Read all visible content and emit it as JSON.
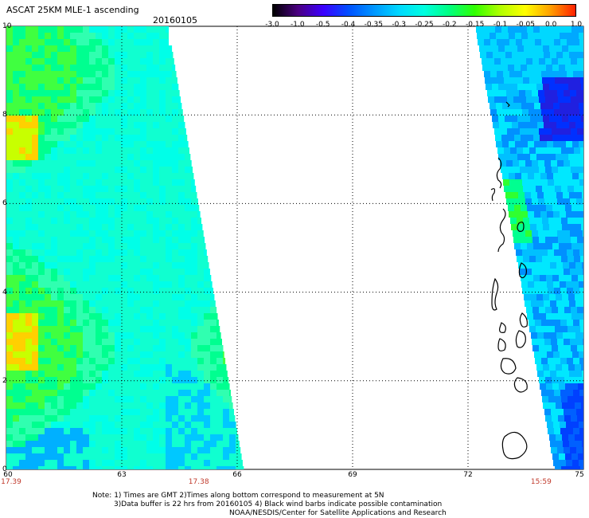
{
  "title": "ASCAT 25KM MLE-1 ascending",
  "date": "20160105",
  "colorbar": {
    "labels": [
      "-3.0",
      "-1.0",
      "-0.5",
      "-0.4",
      "-0.35",
      "-0.3",
      "-0.25",
      "-0.2",
      "-0.15",
      "-0.1",
      "-0.05",
      "0.0",
      "1.0"
    ],
    "colors": [
      "#000000",
      "#4b0082",
      "#3b00ff",
      "#0050ff",
      "#0096ff",
      "#00d8ff",
      "#00ffe0",
      "#00ff80",
      "#30ff00",
      "#b0ff00",
      "#ffff00",
      "#ffa000",
      "#ff2000"
    ]
  },
  "y_axis": {
    "labels": [
      "10",
      "8",
      "6",
      "4",
      "2",
      "0"
    ],
    "range": [
      0,
      10
    ]
  },
  "x_axis": {
    "labels": [
      "60",
      "63",
      "66",
      "69",
      "72",
      "75"
    ],
    "range": [
      60,
      75
    ]
  },
  "pass_times": [
    {
      "text": "17.39",
      "lon": 60
    },
    {
      "text": "17.38",
      "lon": 65
    },
    {
      "text": "15:59",
      "lon": 73.9
    }
  ],
  "notes": [
    "Note: 1) Times are GMT 2)Times along bottom correspond to measurement at 5N",
    "3)Data buffer is 22 hrs from 20160105 4) Black wind barbs indicate possible contamination",
    "NOAA/NESDIS/Center for Satellite Applications and Research"
  ]
}
